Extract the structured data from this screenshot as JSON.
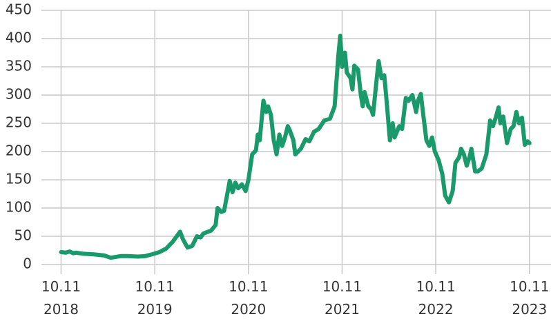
{
  "chart_data": {
    "type": "line",
    "x": [
      2018.86,
      2018.91,
      2018.95,
      2018.99,
      2019.02,
      2019.1,
      2019.21,
      2019.32,
      2019.39,
      2019.5,
      2019.57,
      2019.68,
      2019.76,
      2019.83,
      2019.91,
      2019.98,
      2020.05,
      2020.13,
      2020.16,
      2020.21,
      2020.26,
      2020.31,
      2020.35,
      2020.38,
      2020.46,
      2020.51,
      2020.53,
      2020.57,
      2020.6,
      2020.64,
      2020.66,
      2020.69,
      2020.72,
      2020.75,
      2020.79,
      2020.83,
      2020.86,
      2020.9,
      2020.94,
      2020.96,
      2020.98,
      2021.02,
      2021.05,
      2021.07,
      2021.1,
      2021.13,
      2021.16,
      2021.19,
      2021.22,
      2021.25,
      2021.28,
      2021.3,
      2021.34,
      2021.36,
      2021.42,
      2021.47,
      2021.51,
      2021.56,
      2021.61,
      2021.67,
      2021.73,
      2021.78,
      2021.82,
      2021.84,
      2021.86,
      2021.89,
      2021.91,
      2021.95,
      2021.97,
      2021.99,
      2022.03,
      2022.06,
      2022.08,
      2022.1,
      2022.14,
      2022.17,
      2022.19,
      2022.23,
      2022.25,
      2022.28,
      2022.31,
      2022.34,
      2022.37,
      2022.4,
      2022.42,
      2022.47,
      2022.5,
      2022.54,
      2022.57,
      2022.61,
      2022.65,
      2022.67,
      2022.7,
      2022.73,
      2022.76,
      2022.79,
      2022.82,
      2022.85,
      2022.89,
      2022.93,
      2022.96,
      2023.0,
      2023.04,
      2023.07,
      2023.11,
      2023.13,
      2023.16,
      2023.19,
      2023.22,
      2023.24,
      2023.28,
      2023.31,
      2023.35,
      2023.4,
      2023.44,
      2023.47,
      2023.5,
      2023.53,
      2023.55,
      2023.58,
      2023.62,
      2023.66,
      2023.69,
      2023.72,
      2023.75,
      2023.78,
      2023.81,
      2023.84,
      2023.86
    ],
    "series": [
      {
        "color": "#1a9a6c",
        "values": [
          22,
          21,
          23,
          20,
          21,
          19,
          18,
          16,
          12,
          15,
          15,
          14,
          15,
          18,
          22,
          28,
          40,
          58,
          45,
          30,
          33,
          50,
          48,
          55,
          60,
          70,
          100,
          93,
          95,
          130,
          148,
          128,
          145,
          135,
          142,
          130,
          150,
          195,
          202,
          230,
          220,
          290,
          270,
          280,
          265,
          220,
          195,
          230,
          210,
          225,
          245,
          238,
          220,
          195,
          205,
          222,
          218,
          235,
          240,
          255,
          258,
          280,
          370,
          405,
          350,
          375,
          340,
          330,
          310,
          352,
          345,
          300,
          280,
          305,
          280,
          275,
          265,
          330,
          360,
          330,
          335,
          280,
          220,
          250,
          225,
          245,
          240,
          295,
          290,
          300,
          270,
          290,
          302,
          260,
          220,
          210,
          225,
          200,
          185,
          160,
          122,
          110,
          130,
          180,
          190,
          205,
          195,
          175,
          190,
          205,
          165,
          165,
          170,
          195,
          255,
          245,
          260,
          278,
          250,
          262,
          215,
          240,
          245,
          270,
          250,
          260,
          212,
          218,
          215
        ]
      }
    ],
    "xlim": [
      2018.65,
      2024.09
    ],
    "xticks": [
      {
        "value": 2018.86,
        "label": "10.11\n2018"
      },
      {
        "value": 2019.86,
        "label": "10.11\n2019"
      },
      {
        "value": 2020.86,
        "label": "10.11\n2020"
      },
      {
        "value": 2021.86,
        "label": "10.11\n2021"
      },
      {
        "value": 2022.86,
        "label": "10.11\n2022"
      },
      {
        "value": 2023.86,
        "label": "10.11\n2023"
      }
    ],
    "ylim": [
      0,
      450
    ],
    "yticks": [
      0,
      50,
      100,
      150,
      200,
      250,
      300,
      350,
      400,
      450
    ],
    "grid": true
  }
}
